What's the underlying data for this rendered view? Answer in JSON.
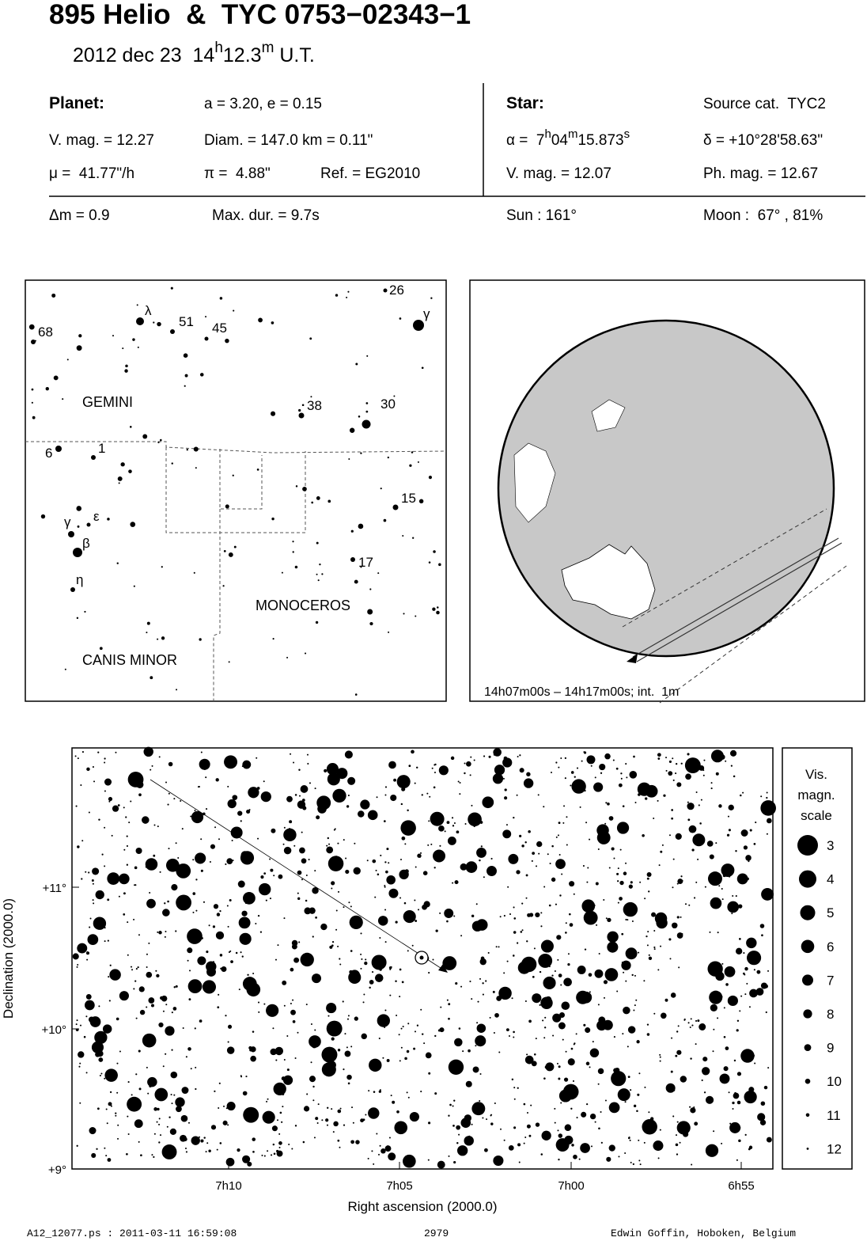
{
  "header": {
    "title": "895 Helio  &  TYC 0753−02343−1",
    "date": "2012 dec 23  14",
    "time_h": "h",
    "time_min": "12.3",
    "time_m": "m",
    "time_utc": " U.T."
  },
  "info": {
    "planet_label": "Planet:",
    "orbit": "a = 3.20, e = 0.15",
    "planet_vmag": "V. mag. = 12.27",
    "diameter": "Diam. = 147.0 km = 0.11\"",
    "motion": "μ =  41.77\"/h",
    "parallax": "π =  4.88\"",
    "ref": "Ref. = EG2010",
    "star_label": "Star:",
    "source": "Source cat.  TYC2",
    "ra": [
      "α =  7",
      "h",
      "04",
      "m",
      "15.873",
      "s"
    ],
    "dec": "δ = +10°28'58.63\"",
    "star_vmag": "V. mag. = 12.07",
    "star_phmag": "Ph. mag. = 12.67",
    "delta_mag": "Δm = 0.9",
    "max_dur": "Max. dur. = 9.7s",
    "sun": "Sun : 161°",
    "moon": "Moon :  67° , 81%"
  },
  "finder": {
    "labels": [
      "68",
      "λ",
      "51",
      "45",
      "26",
      "γ",
      "38",
      "30",
      "6",
      "1",
      "15",
      "γ",
      "ε",
      "β",
      "η",
      "17"
    ],
    "constellations": [
      "GEMINI",
      "MONOCEROS",
      "CANIS MINOR"
    ]
  },
  "globe": {
    "caption": "14h07m00s – 14h17m00s; int.  1m"
  },
  "field": {
    "y_ticks": [
      "+11°",
      "+10°",
      "+9°"
    ],
    "x_ticks": [
      "7h10",
      "7h05",
      "7h00",
      "6h55"
    ],
    "y_title": "Declination (2000.0)",
    "x_title": "Right ascension (2000.0)"
  },
  "legend": {
    "title": [
      "Vis.",
      "magn.",
      "scale"
    ],
    "magnitudes": [
      "3",
      "4",
      "5",
      "6",
      "7",
      "8",
      "9",
      "10",
      "11",
      "12"
    ]
  },
  "footer": {
    "file": "A12_12077.ps : 2011-03-11 16:59:08",
    "number": "2979",
    "author": "Edwin Goffin, Hoboken, Belgium"
  }
}
